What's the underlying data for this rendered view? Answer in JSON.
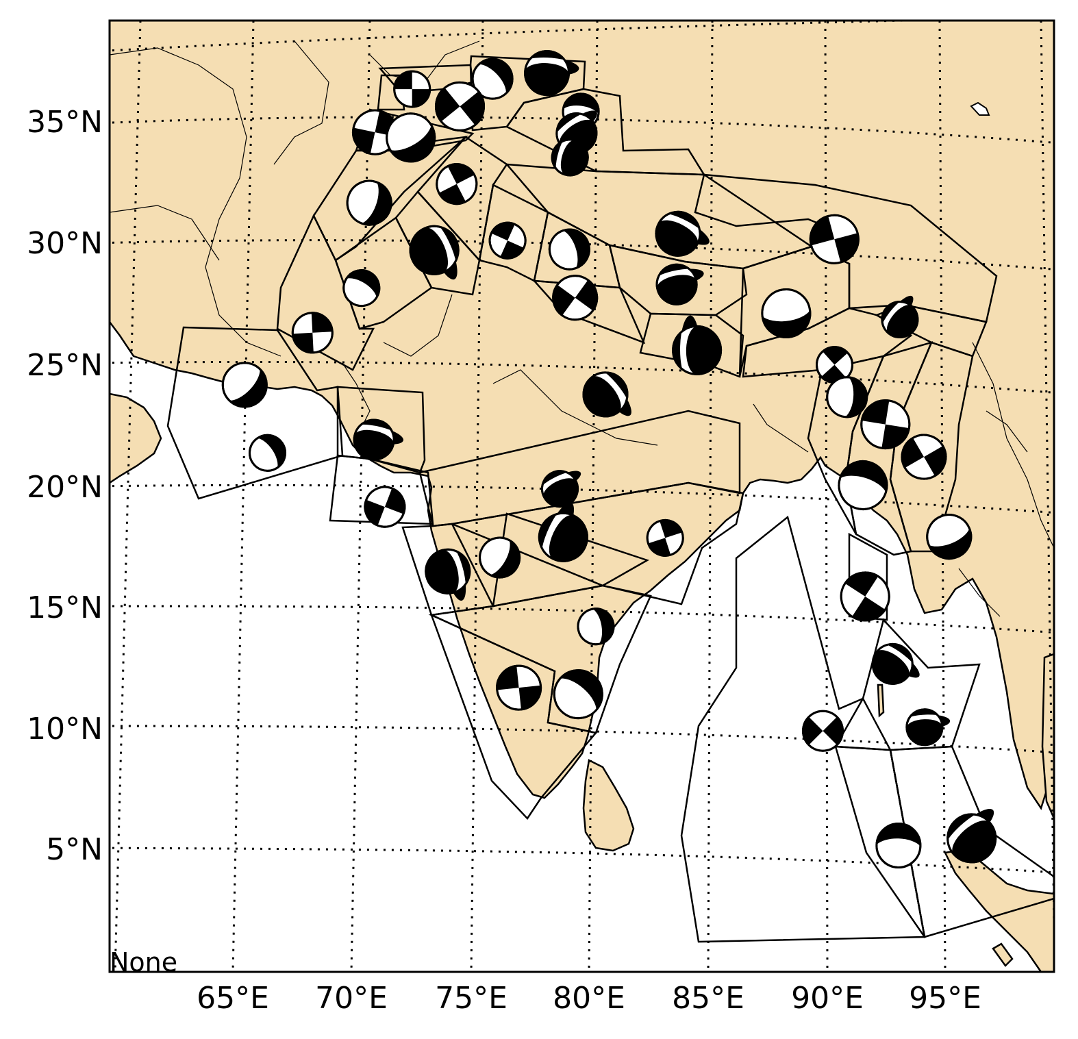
{
  "map": {
    "corner_text": "None",
    "lon_labels": [
      "65°E",
      "70°E",
      "75°E",
      "80°E",
      "85°E",
      "90°E",
      "95°E"
    ],
    "lat_labels": [
      "35°N",
      "30°N",
      "25°N",
      "20°N",
      "15°N",
      "10°N",
      "5°N"
    ],
    "colors": {
      "land": "#f5deb3",
      "sea": "#ffffff",
      "lines": "#000000"
    },
    "focal_mechanisms": [
      {
        "lon": 72.9,
        "lat": 36.6
      },
      {
        "lon": 76.3,
        "lat": 36.9
      },
      {
        "lon": 78.6,
        "lat": 37.1
      },
      {
        "lon": 74.9,
        "lat": 35.8
      },
      {
        "lon": 80.0,
        "lat": 35.5
      },
      {
        "lon": 79.8,
        "lat": 34.6
      },
      {
        "lon": 71.3,
        "lat": 34.9
      },
      {
        "lon": 72.8,
        "lat": 34.6
      },
      {
        "lon": 79.5,
        "lat": 33.6
      },
      {
        "lon": 74.7,
        "lat": 32.6
      },
      {
        "lon": 71.0,
        "lat": 32.0
      },
      {
        "lon": 73.7,
        "lat": 29.9
      },
      {
        "lon": 76.8,
        "lat": 30.2
      },
      {
        "lon": 79.4,
        "lat": 29.8
      },
      {
        "lon": 84.0,
        "lat": 30.5
      },
      {
        "lon": 90.6,
        "lat": 30.6
      },
      {
        "lon": 70.6,
        "lat": 28.5
      },
      {
        "lon": 83.9,
        "lat": 28.4
      },
      {
        "lon": 79.6,
        "lat": 27.8
      },
      {
        "lon": 88.5,
        "lat": 27.4
      },
      {
        "lon": 93.3,
        "lat": 27.5
      },
      {
        "lon": 68.5,
        "lat": 26.8
      },
      {
        "lon": 65.6,
        "lat": 24.9
      },
      {
        "lon": 84.7,
        "lat": 25.7
      },
      {
        "lon": 90.5,
        "lat": 25.4
      },
      {
        "lon": 91.0,
        "lat": 24.1
      },
      {
        "lon": 80.8,
        "lat": 23.8
      },
      {
        "lon": 92.6,
        "lat": 23.1
      },
      {
        "lon": 66.5,
        "lat": 22.0
      },
      {
        "lon": 71.0,
        "lat": 22.2
      },
      {
        "lon": 94.2,
        "lat": 21.9
      },
      {
        "lon": 91.6,
        "lat": 20.5
      },
      {
        "lon": 78.8,
        "lat": 19.9
      },
      {
        "lon": 71.4,
        "lat": 19.4
      },
      {
        "lon": 95.2,
        "lat": 18.7
      },
      {
        "lon": 78.9,
        "lat": 17.9
      },
      {
        "lon": 83.2,
        "lat": 17.9
      },
      {
        "lon": 76.2,
        "lat": 17.1
      },
      {
        "lon": 74.0,
        "lat": 16.6
      },
      {
        "lon": 91.6,
        "lat": 15.9
      },
      {
        "lon": 80.2,
        "lat": 14.2
      },
      {
        "lon": 92.7,
        "lat": 13.2
      },
      {
        "lon": 76.9,
        "lat": 11.7
      },
      {
        "lon": 79.4,
        "lat": 11.4
      },
      {
        "lon": 94.0,
        "lat": 10.7
      },
      {
        "lon": 89.7,
        "lat": 10.2
      },
      {
        "lon": 92.8,
        "lat": 5.7
      },
      {
        "lon": 95.9,
        "lat": 6.3
      }
    ]
  }
}
